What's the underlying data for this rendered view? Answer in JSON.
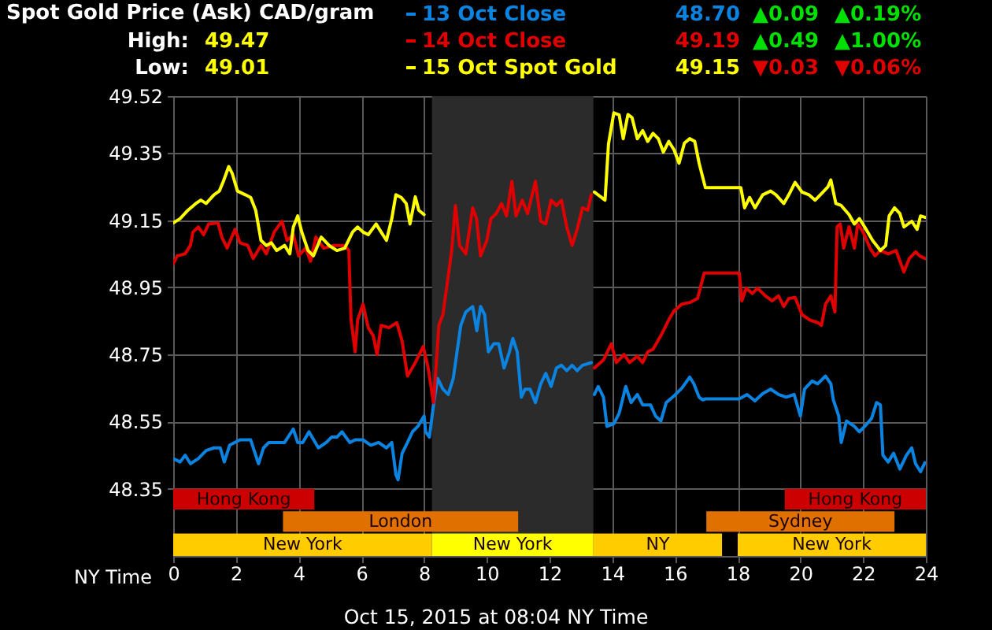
{
  "chart_data": {
    "type": "line",
    "title": "Spot Gold Price (Ask) CAD/gram",
    "xlabel": "NY Time",
    "annotations": [
      "High:",
      "49.47",
      "Low:",
      "49.01",
      "48.70",
      "▲0.09",
      "▲0.19%",
      "49.19",
      "▲0.49",
      "▲1.00%",
      "49.15",
      "▼0.03",
      "▼0.06%",
      "Oct 15, 2015 at 08:04 NY Time"
    ],
    "xlim": [
      0,
      24
    ],
    "xticks": [
      0,
      2,
      4,
      6,
      8,
      10,
      12,
      14,
      16,
      18,
      20,
      22,
      24
    ],
    "ylim": [
      48.15,
      49.52
    ],
    "yticks": [
      48.35,
      48.55,
      48.75,
      48.95,
      49.15,
      49.35,
      49.52
    ],
    "grid": true,
    "legend": "top",
    "line_style": "solid",
    "bands": [
      {
        "axis": "x",
        "from": 8.25,
        "to": 13.4,
        "color": "#2b2b2b"
      },
      {
        "axis": "x",
        "from": 0,
        "to": 4.5,
        "label": "Hong Kong",
        "color": "#cc0000"
      },
      {
        "axis": "x",
        "from": 19.5,
        "to": 24,
        "label": "Hong Kong",
        "color": "#cc0000"
      },
      {
        "axis": "x",
        "from": 3.5,
        "to": 11,
        "label": "London",
        "color": "#e07000"
      },
      {
        "axis": "x",
        "from": 17,
        "to": 23,
        "label": "Sydney",
        "color": "#e07000"
      },
      {
        "axis": "x",
        "from": 0,
        "to": 8.25,
        "label": "New York",
        "color": "#ffcc00"
      },
      {
        "axis": "x",
        "from": 8.25,
        "to": 13.4,
        "label": "New York",
        "color": "#ffff00"
      },
      {
        "axis": "x",
        "from": 13.4,
        "to": 17.5,
        "label": "NY",
        "color": "#ffcc00"
      },
      {
        "axis": "x",
        "from": 18,
        "to": 24,
        "label": "New York",
        "color": "#ffcc00"
      }
    ],
    "series": [
      {
        "name": "13 Oct Close",
        "color": "#0a84e0",
        "x": [
          0,
          0.22,
          0.38,
          0.55,
          0.8,
          1.05,
          1.3,
          1.5,
          1.63,
          1.8,
          2.13,
          2.47,
          2.72,
          2.88,
          3.05,
          3.3,
          3.55,
          3.83,
          3.97,
          4.13,
          4.33,
          4.63,
          4.88,
          5.05,
          5.22,
          5.38,
          5.63,
          5.8,
          6.05,
          6.3,
          6.55,
          6.8,
          6.97,
          7.1,
          7.17,
          7.3,
          7.47,
          7.63,
          7.8,
          8.0,
          8.05,
          8.17,
          8.3,
          8.43,
          8.6,
          8.77,
          8.93,
          9.05,
          9.17,
          9.33,
          9.55,
          9.68,
          9.8,
          9.93,
          10.05,
          10.22,
          10.38,
          10.55,
          10.72,
          10.83,
          10.97,
          11.1,
          11.22,
          11.38,
          11.55,
          11.72,
          11.88,
          12.05,
          12.22,
          12.38,
          12.55,
          12.72,
          12.88,
          13.05,
          13.33,
          13.38,
          13.43,
          13.55,
          13.72,
          13.83,
          14.05,
          14.22,
          14.43,
          14.6,
          14.8,
          14.97,
          15.22,
          15.38,
          15.55,
          15.72,
          15.97,
          16.22,
          16.47,
          16.6,
          16.77,
          16.88,
          16.97,
          18.05,
          18.3,
          18.55,
          18.8,
          19.05,
          19.3,
          19.55,
          19.8,
          20.0,
          20.13,
          20.37,
          20.55,
          20.8,
          20.97,
          21.05,
          21.22,
          21.3,
          21.47,
          21.72,
          21.88,
          22.05,
          22.27,
          22.43,
          22.55,
          22.63,
          22.8,
          22.97,
          23.17,
          23.38,
          23.55,
          23.67,
          23.83,
          23.97
        ],
        "values": [
          48.44,
          48.43,
          48.45,
          48.425,
          48.44,
          48.464,
          48.472,
          48.472,
          48.43,
          48.48,
          48.496,
          48.496,
          48.425,
          48.472,
          48.488,
          48.488,
          48.488,
          48.528,
          48.488,
          48.488,
          48.52,
          48.472,
          48.488,
          48.504,
          48.504,
          48.52,
          48.488,
          48.496,
          48.496,
          48.48,
          48.488,
          48.472,
          48.488,
          48.393,
          48.377,
          48.456,
          48.488,
          48.52,
          48.536,
          48.567,
          48.52,
          48.504,
          48.6,
          48.679,
          48.647,
          48.631,
          48.679,
          48.758,
          48.837,
          48.877,
          48.893,
          48.821,
          48.893,
          48.869,
          48.758,
          48.782,
          48.782,
          48.71,
          48.758,
          48.798,
          48.758,
          48.623,
          48.647,
          48.647,
          48.607,
          48.663,
          48.694,
          48.655,
          48.71,
          48.718,
          48.702,
          48.718,
          48.702,
          48.718,
          48.726,
          null,
          48.631,
          48.655,
          48.623,
          48.536,
          48.544,
          48.575,
          48.655,
          48.607,
          48.631,
          48.6,
          48.6,
          48.567,
          48.552,
          48.607,
          48.627,
          48.65,
          48.683,
          48.663,
          48.623,
          48.615,
          48.618,
          48.618,
          48.631,
          48.612,
          48.634,
          48.647,
          48.631,
          48.623,
          48.631,
          48.567,
          48.647,
          48.671,
          48.663,
          48.686,
          48.663,
          48.615,
          48.567,
          48.488,
          48.552,
          48.536,
          48.52,
          48.536,
          48.56,
          48.607,
          48.6,
          48.45,
          48.43,
          48.456,
          48.409,
          48.45,
          48.472,
          48.425,
          48.401,
          48.428
        ]
      },
      {
        "name": "14 Oct Close",
        "color": "#e00000",
        "x": [
          0,
          0.13,
          0.38,
          0.55,
          0.63,
          0.8,
          0.97,
          1.13,
          1.43,
          1.55,
          1.72,
          1.97,
          2.13,
          2.38,
          2.55,
          2.8,
          2.97,
          3.22,
          3.47,
          3.63,
          3.83,
          4.0,
          4.22,
          4.38,
          4.55,
          4.8,
          5.13,
          5.47,
          5.6,
          5.67,
          5.72,
          5.8,
          5.88,
          6.05,
          6.22,
          6.38,
          6.5,
          6.63,
          6.88,
          7.13,
          7.3,
          7.47,
          7.72,
          7.97,
          8.13,
          8.3,
          8.38,
          8.47,
          8.6,
          8.72,
          8.88,
          9.0,
          9.13,
          9.33,
          9.55,
          9.67,
          9.8,
          10.0,
          10.13,
          10.3,
          10.47,
          10.63,
          10.8,
          10.93,
          11.13,
          11.3,
          11.55,
          11.72,
          11.88,
          12.05,
          12.22,
          12.38,
          12.55,
          12.72,
          12.88,
          13.05,
          13.22,
          13.33,
          13.38,
          13.43,
          13.72,
          13.97,
          14.13,
          14.38,
          14.55,
          14.8,
          14.97,
          15.13,
          15.3,
          15.55,
          15.8,
          15.97,
          16.22,
          16.47,
          16.72,
          16.93,
          18.05,
          18.13,
          18.27,
          18.47,
          18.63,
          18.88,
          19.1,
          19.3,
          19.47,
          19.63,
          19.83,
          20.05,
          20.3,
          20.55,
          20.67,
          20.8,
          20.97,
          21.1,
          21.17,
          21.27,
          21.38,
          21.55,
          21.72,
          21.83,
          22.0,
          22.22,
          22.38,
          22.55,
          22.8,
          23.05,
          23.3,
          23.47,
          23.67,
          23.8,
          23.97
        ],
        "values": [
          49.02,
          49.044,
          49.05,
          49.075,
          49.115,
          49.13,
          49.107,
          49.139,
          49.142,
          49.1,
          49.067,
          49.123,
          49.083,
          49.075,
          49.036,
          49.075,
          49.05,
          49.115,
          49.147,
          49.09,
          49.107,
          49.044,
          49.067,
          49.028,
          49.1,
          49.067,
          49.075,
          49.075,
          49.06,
          48.853,
          48.82,
          48.758,
          48.853,
          48.9,
          48.83,
          48.806,
          48.75,
          48.837,
          48.83,
          48.845,
          48.79,
          48.686,
          48.726,
          48.774,
          48.71,
          48.607,
          48.71,
          48.837,
          48.869,
          48.95,
          49.06,
          49.194,
          49.075,
          49.05,
          49.187,
          49.155,
          49.044,
          49.09,
          49.155,
          49.17,
          49.2,
          49.163,
          49.266,
          49.163,
          49.21,
          49.17,
          49.266,
          49.147,
          49.139,
          49.21,
          49.194,
          49.21,
          49.13,
          49.075,
          49.123,
          49.187,
          49.18,
          49.226,
          null,
          48.71,
          48.734,
          48.782,
          48.726,
          48.75,
          48.726,
          48.745,
          48.726,
          48.758,
          48.766,
          48.806,
          48.853,
          48.88,
          48.9,
          48.905,
          48.917,
          48.993,
          48.993,
          48.91,
          48.948,
          48.932,
          48.948,
          48.925,
          48.91,
          48.925,
          48.893,
          48.917,
          48.92,
          48.869,
          48.853,
          48.845,
          48.837,
          48.9,
          48.925,
          48.877,
          49.131,
          49.139,
          49.067,
          49.131,
          49.067,
          49.139,
          49.115,
          49.067,
          49.044,
          49.06,
          49.05,
          49.06,
          48.996,
          49.036,
          49.056,
          49.044,
          49.036
        ]
      },
      {
        "name": "15 Oct Spot Gold",
        "color": "#ffff00",
        "x": [
          0,
          0.22,
          0.47,
          0.72,
          0.88,
          1.05,
          1.3,
          1.47,
          1.6,
          1.77,
          1.88,
          2.05,
          2.3,
          2.47,
          2.63,
          2.8,
          2.97,
          3.13,
          3.3,
          3.55,
          3.72,
          3.83,
          3.97,
          4.1,
          4.3,
          4.47,
          4.72,
          4.97,
          5.22,
          5.47,
          5.72,
          5.88,
          6.05,
          6.22,
          6.47,
          6.63,
          6.8,
          6.97,
          7.1,
          7.27,
          7.43,
          7.55,
          7.72,
          7.83,
          8.0,
          10.7,
          13.43,
          13.63,
          13.77,
          13.88,
          14.05,
          14.22,
          14.35,
          14.5,
          14.63,
          14.8,
          14.97,
          15.13,
          15.3,
          15.47,
          15.63,
          15.8,
          15.97,
          16.13,
          16.3,
          16.47,
          16.63,
          16.77,
          16.97,
          18.1,
          18.22,
          18.38,
          18.55,
          18.8,
          19.05,
          19.22,
          19.47,
          19.63,
          19.83,
          20.05,
          20.27,
          20.47,
          20.72,
          20.88,
          20.97,
          21.13,
          21.3,
          21.55,
          21.72,
          21.88,
          22.05,
          22.3,
          22.55,
          22.72,
          22.83,
          23.0,
          23.17,
          23.3,
          23.55,
          23.72,
          23.83,
          24.0
        ],
        "values": [
          49.142,
          49.155,
          49.18,
          49.2,
          49.21,
          49.2,
          49.226,
          49.237,
          49.266,
          49.31,
          49.29,
          49.237,
          49.226,
          49.218,
          49.18,
          49.09,
          49.075,
          49.083,
          49.06,
          49.075,
          49.05,
          49.13,
          49.163,
          49.115,
          49.06,
          49.044,
          49.1,
          49.075,
          49.06,
          49.067,
          49.115,
          49.13,
          49.115,
          49.107,
          49.139,
          49.115,
          49.09,
          49.155,
          49.226,
          49.218,
          49.2,
          49.139,
          49.22,
          49.18,
          49.167,
          null,
          49.234,
          49.22,
          49.21,
          49.377,
          49.47,
          49.464,
          49.393,
          49.465,
          49.456,
          49.393,
          49.417,
          49.385,
          49.409,
          49.393,
          49.353,
          49.385,
          49.36,
          49.32,
          49.38,
          49.393,
          49.385,
          49.32,
          49.247,
          49.247,
          49.187,
          49.218,
          49.187,
          49.226,
          49.237,
          49.226,
          49.2,
          49.226,
          49.263,
          49.234,
          49.226,
          49.21,
          49.234,
          49.25,
          49.27,
          49.2,
          49.194,
          49.167,
          49.139,
          49.155,
          49.13,
          49.09,
          49.06,
          49.075,
          49.163,
          49.187,
          49.17,
          49.13,
          49.147,
          49.123,
          49.163,
          49.158
        ]
      }
    ]
  }
}
